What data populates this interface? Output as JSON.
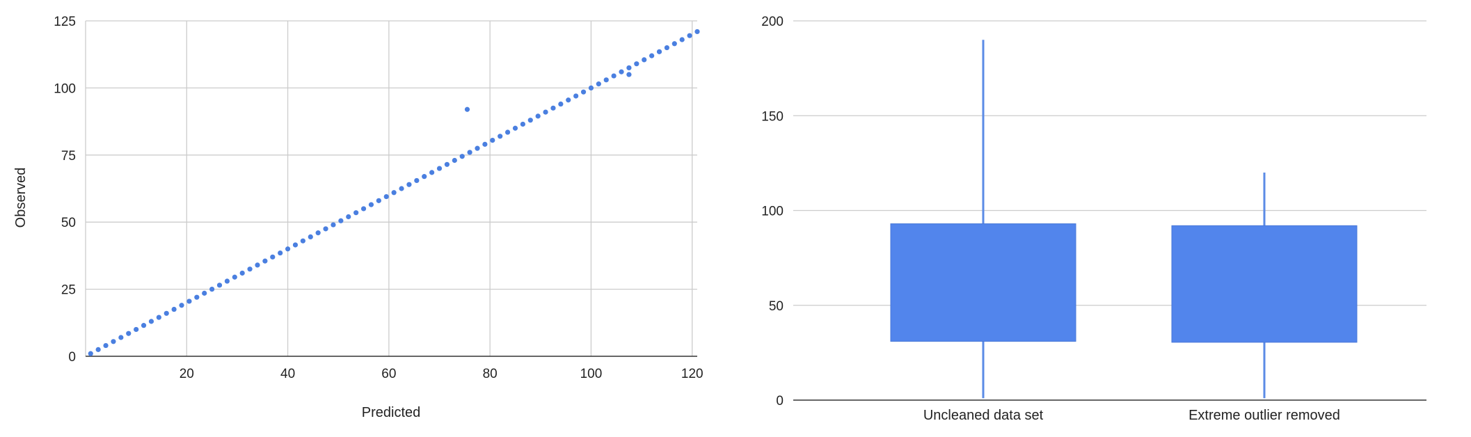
{
  "chart_data": [
    {
      "type": "scatter",
      "title": "",
      "xlabel": "Predicted",
      "ylabel": "Observed",
      "xlim": [
        0,
        121
      ],
      "ylim": [
        0,
        125
      ],
      "x_ticks": [
        "20",
        "40",
        "60",
        "80",
        "100",
        "120"
      ],
      "y_ticks": [
        "0",
        "25",
        "50",
        "75",
        "100",
        "125"
      ],
      "grid": true,
      "legend": "none",
      "color": "#4a7fe0",
      "series": [
        {
          "line": {
            "from": 1,
            "to": 121,
            "step": 1.5
          },
          "points": [
            [
              75.5,
              92
            ],
            [
              107.5,
              105
            ]
          ]
        }
      ]
    },
    {
      "type": "box",
      "title": "",
      "xlabel": "",
      "ylabel": "",
      "ylim": [
        0,
        200
      ],
      "y_ticks": [
        "0",
        "50",
        "100",
        "150",
        "200"
      ],
      "grid": true,
      "legend": "none",
      "color": "#5285ec",
      "whisker_color": "#5b8be6",
      "categories": [
        "Uncleaned data set",
        "Extreme outlier removed"
      ],
      "boxes": [
        {
          "min": 1,
          "q1": 31,
          "q3": 93,
          "max": 190
        },
        {
          "min": 1,
          "q1": 30.5,
          "q3": 92,
          "max": 120
        }
      ]
    }
  ]
}
